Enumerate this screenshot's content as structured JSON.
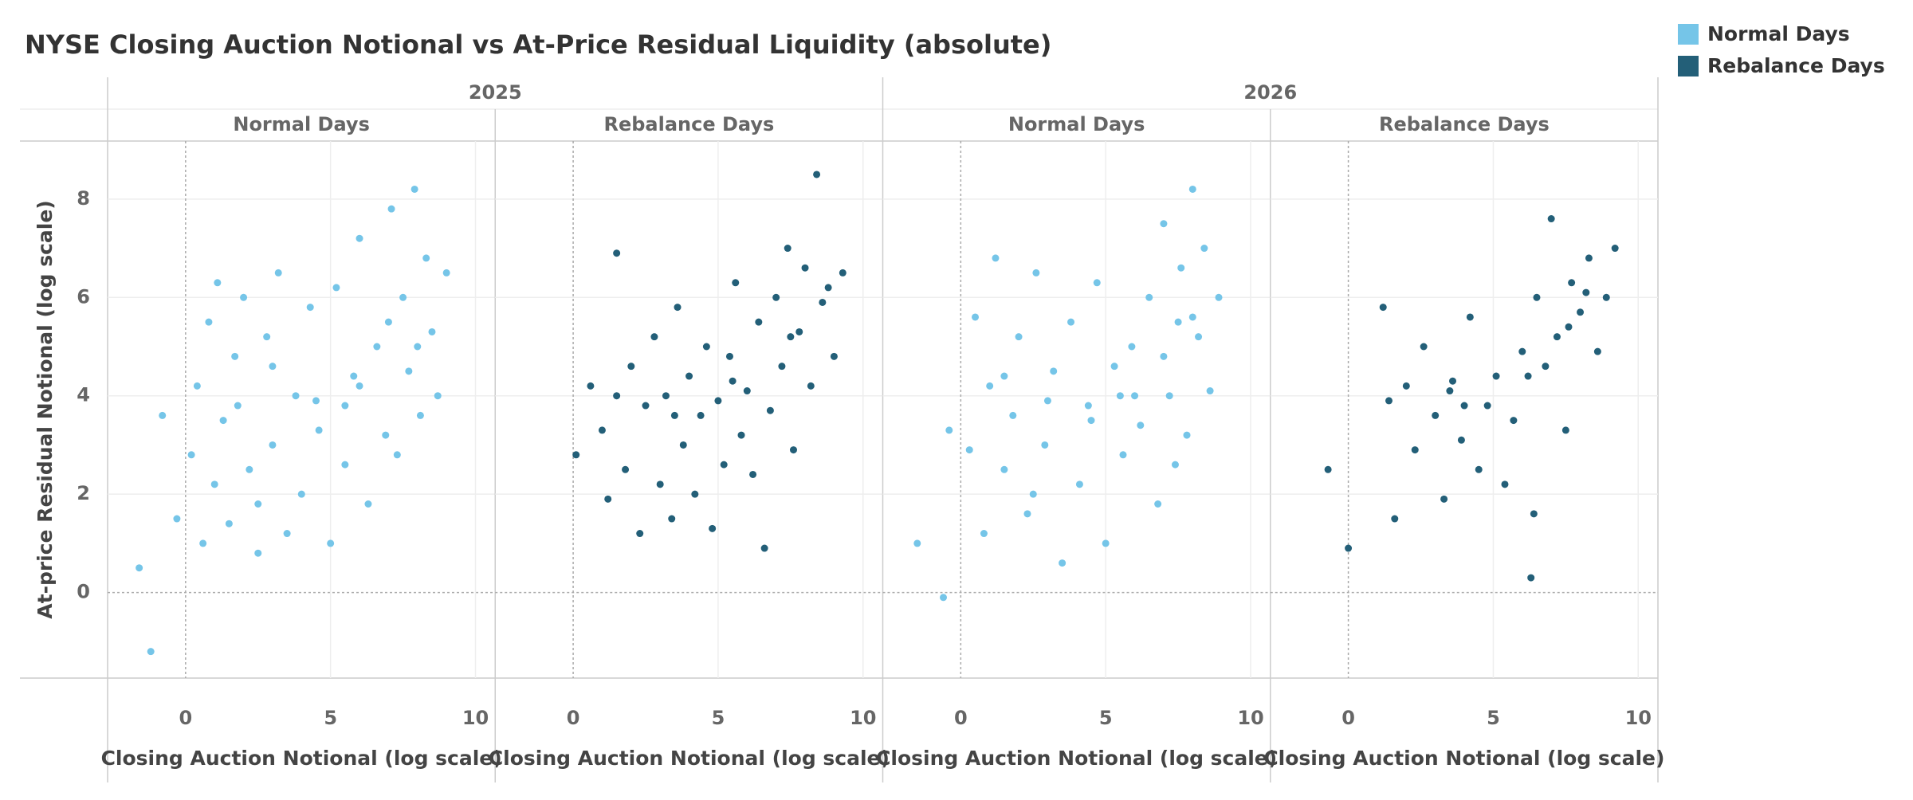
{
  "title": "NYSE Closing Auction Notional vs At-Price Residual Liquidity (absolute)",
  "groups": [
    "2025",
    "2026"
  ],
  "chart_data": [
    {
      "type": "scatter",
      "group": 0,
      "y_label": "At-price Residual Notional (log scale)",
      "x_label": "Closing Auction Notional (log scale)",
      "xlim": [
        -2.69,
        10.68
      ],
      "xticks": [
        0,
        5,
        10
      ],
      "ylim": [
        -1.74,
        9.18
      ],
      "yticks": [
        0,
        2,
        4,
        6,
        8
      ],
      "series": [
        {
          "name": "Normal Days",
          "color": "#75c5e8",
          "x": [
            -1.2,
            -1.6,
            -0.8,
            -0.3,
            0.2,
            0.4,
            0.6,
            0.8,
            1.0,
            1.1,
            1.3,
            1.5,
            1.7,
            2.0,
            2.2,
            2.5,
            2.8,
            3.0,
            3.2,
            3.5,
            3.8,
            4.0,
            4.3,
            4.6,
            5.0,
            5.2,
            5.5,
            5.8,
            6.0,
            6.3,
            6.6,
            6.9,
            7.1,
            7.3,
            7.5,
            7.7,
            7.9,
            8.1,
            8.3,
            8.5,
            8.7,
            9.0,
            1.8,
            3.0,
            4.5,
            6.0,
            7.0,
            8.0,
            2.5,
            5.5
          ],
          "values": [
            -1.2,
            0.5,
            3.6,
            1.5,
            2.8,
            4.2,
            1.0,
            5.5,
            2.2,
            6.3,
            3.5,
            1.4,
            4.8,
            6.0,
            2.5,
            0.8,
            5.2,
            3.0,
            6.5,
            1.2,
            4.0,
            2.0,
            5.8,
            3.3,
            1.0,
            6.2,
            2.6,
            4.4,
            7.2,
            1.8,
            5.0,
            3.2,
            7.8,
            2.8,
            6.0,
            4.5,
            8.2,
            3.6,
            6.8,
            5.3,
            4.0,
            6.5,
            3.8,
            4.6,
            3.9,
            4.2,
            5.5,
            5.0,
            1.8,
            3.8
          ]
        }
      ]
    },
    {
      "type": "scatter",
      "group": 0,
      "x_label": "Closing Auction Notional (log scale)",
      "xlim": [
        -2.69,
        10.68
      ],
      "xticks": [
        0,
        5,
        10
      ],
      "ylim": [
        -1.74,
        9.18
      ],
      "yticks": [
        0,
        2,
        4,
        6,
        8
      ],
      "series": [
        {
          "name": "Rebalance Days",
          "color": "#235f78",
          "x": [
            0.1,
            0.6,
            1.0,
            1.2,
            1.5,
            1.8,
            2.0,
            2.3,
            2.5,
            2.8,
            3.0,
            3.2,
            3.4,
            3.6,
            3.8,
            4.0,
            4.2,
            4.4,
            4.6,
            4.8,
            5.0,
            5.2,
            5.4,
            5.6,
            5.8,
            6.0,
            6.2,
            6.4,
            6.6,
            6.8,
            7.0,
            7.2,
            7.4,
            7.6,
            7.8,
            8.0,
            8.2,
            8.4,
            8.6,
            8.8,
            9.0,
            9.3,
            1.5,
            3.5,
            5.5,
            7.5
          ],
          "values": [
            2.8,
            4.2,
            3.3,
            1.9,
            6.9,
            2.5,
            4.6,
            1.2,
            3.8,
            5.2,
            2.2,
            4.0,
            1.5,
            5.8,
            3.0,
            4.4,
            2.0,
            3.6,
            5.0,
            1.3,
            3.9,
            2.6,
            4.8,
            6.3,
            3.2,
            4.1,
            2.4,
            5.5,
            0.9,
            3.7,
            6.0,
            4.6,
            7.0,
            2.9,
            5.3,
            6.6,
            4.2,
            8.5,
            5.9,
            6.2,
            4.8,
            6.5,
            4.0,
            3.6,
            4.3,
            5.2
          ]
        }
      ]
    },
    {
      "type": "scatter",
      "group": 1,
      "x_label": "Closing Auction Notional (log scale)",
      "xlim": [
        -2.69,
        10.68
      ],
      "xticks": [
        0,
        5,
        10
      ],
      "ylim": [
        -1.74,
        9.18
      ],
      "yticks": [
        0,
        2,
        4,
        6,
        8
      ],
      "series": [
        {
          "name": "Normal Days",
          "color": "#75c5e8",
          "x": [
            -1.5,
            -0.6,
            -0.4,
            0.3,
            0.5,
            0.8,
            1.0,
            1.2,
            1.5,
            1.8,
            2.0,
            2.3,
            2.6,
            2.9,
            3.2,
            3.5,
            3.8,
            4.1,
            4.4,
            4.7,
            5.0,
            5.3,
            5.6,
            5.9,
            6.2,
            6.5,
            6.8,
            7.0,
            7.2,
            7.4,
            7.6,
            7.8,
            8.0,
            8.2,
            8.4,
            8.6,
            8.9,
            1.5,
            3.0,
            4.5,
            6.0,
            7.0,
            8.0,
            2.5,
            5.5,
            7.5
          ],
          "values": [
            1.0,
            -0.1,
            3.3,
            2.9,
            5.6,
            1.2,
            4.2,
            6.8,
            2.5,
            3.6,
            5.2,
            1.6,
            6.5,
            3.0,
            4.5,
            0.6,
            5.5,
            2.2,
            3.8,
            6.3,
            1.0,
            4.6,
            2.8,
            5.0,
            3.4,
            6.0,
            1.8,
            7.5,
            4.0,
            2.6,
            6.6,
            3.2,
            8.2,
            5.2,
            7.0,
            4.1,
            6.0,
            4.4,
            3.9,
            3.5,
            4.0,
            4.8,
            5.6,
            2.0,
            4.0,
            5.5
          ]
        }
      ]
    },
    {
      "type": "scatter",
      "group": 1,
      "x_label": "Closing Auction Notional (log scale)",
      "xlim": [
        -2.69,
        10.68
      ],
      "xticks": [
        0,
        5,
        10
      ],
      "ylim": [
        -1.74,
        9.18
      ],
      "yticks": [
        0,
        2,
        4,
        6,
        8
      ],
      "series": [
        {
          "name": "Rebalance Days",
          "color": "#235f78",
          "x": [
            -0.7,
            0.0,
            1.2,
            1.4,
            1.6,
            2.0,
            2.3,
            2.6,
            3.0,
            3.3,
            3.6,
            3.9,
            4.2,
            4.5,
            4.8,
            5.1,
            5.4,
            5.7,
            6.0,
            6.3,
            6.5,
            6.8,
            7.0,
            7.2,
            7.5,
            7.7,
            8.0,
            8.3,
            8.6,
            8.9,
            9.2,
            4.0,
            7.6,
            8.2,
            3.5,
            6.2,
            6.4
          ],
          "values": [
            2.5,
            0.9,
            5.8,
            3.9,
            1.5,
            4.2,
            2.9,
            5.0,
            3.6,
            1.9,
            4.3,
            3.1,
            5.6,
            2.5,
            3.8,
            4.4,
            2.2,
            3.5,
            4.9,
            0.3,
            6.0,
            4.6,
            7.6,
            5.2,
            3.3,
            6.3,
            5.7,
            6.8,
            4.9,
            6.0,
            7.0,
            3.8,
            5.4,
            6.1,
            4.1,
            4.4,
            1.6
          ]
        }
      ]
    }
  ]
}
